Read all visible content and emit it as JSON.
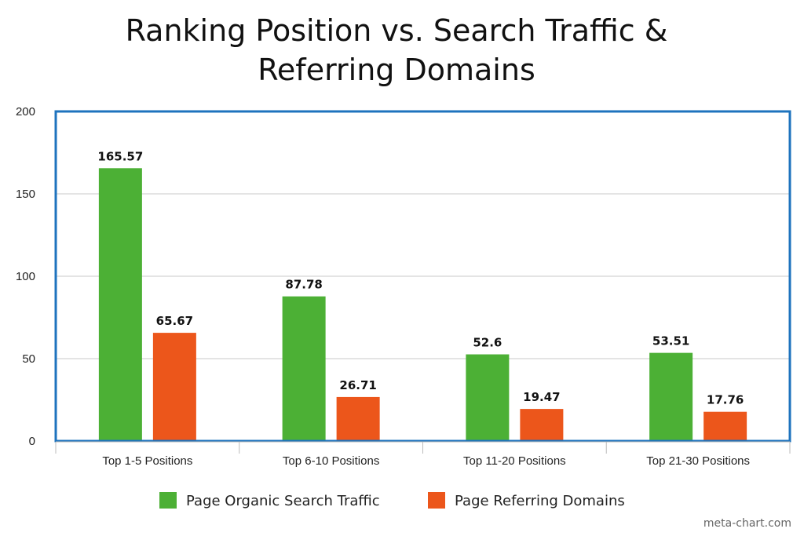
{
  "chart_data": {
    "type": "bar",
    "title": "Ranking Position vs. Search Traffic & Referring Domains",
    "categories": [
      "Top 1-5 Positions",
      "Top 6-10 Positions",
      "Top 11-20 Positions",
      "Top 21-30 Positions"
    ],
    "series": [
      {
        "name": "Page Organic Search Traffic",
        "values": [
          165.57,
          87.78,
          52.6,
          53.51
        ],
        "labels": [
          "165.57",
          "87.78",
          "52.6",
          "53.51"
        ],
        "color": "#4cb035"
      },
      {
        "name": "Page Referring Domains",
        "values": [
          65.67,
          26.71,
          19.47,
          17.76
        ],
        "labels": [
          "65.67",
          "26.71",
          "19.47",
          "17.76"
        ],
        "color": "#ec561b"
      }
    ],
    "ylim": [
      0,
      200
    ],
    "yticks": [
      0,
      50,
      100,
      150,
      200
    ],
    "grid": true,
    "legend": "bottom",
    "frame_color": "#1e73be"
  },
  "watermark": "meta-chart.com"
}
